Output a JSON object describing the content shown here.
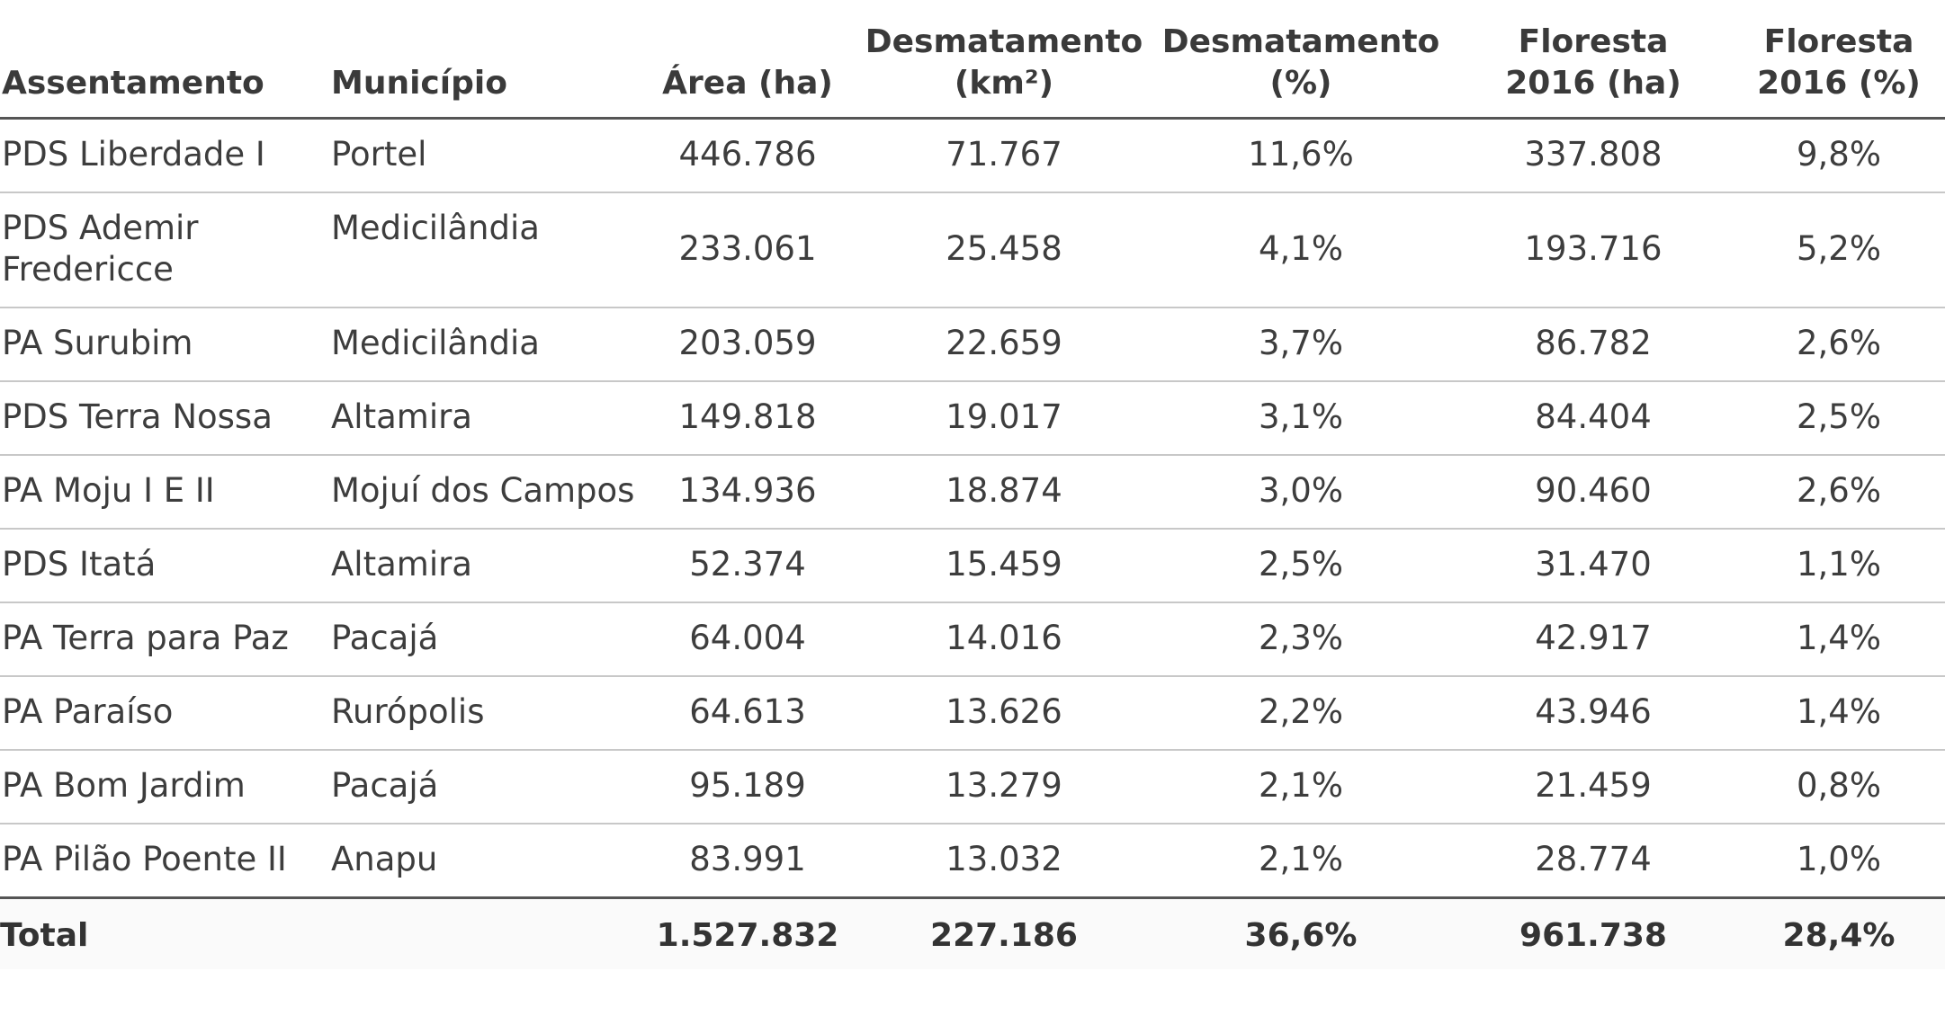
{
  "table": {
    "headers": [
      {
        "line1": "Assentamento",
        "line2": ""
      },
      {
        "line1": "Município",
        "line2": ""
      },
      {
        "line1": "Área (ha)",
        "line2": ""
      },
      {
        "line1": "Desmatamento",
        "line2": "(km²)"
      },
      {
        "line1": "Desmatamento",
        "line2": "(%)"
      },
      {
        "line1": "Floresta",
        "line2": "2016 (ha)"
      },
      {
        "line1": "Floresta",
        "line2": "2016 (%)"
      }
    ],
    "rows": [
      [
        "PDS Liberdade I",
        "Portel",
        "446.786",
        "71.767",
        "11,6%",
        "337.808",
        "9,8%"
      ],
      [
        "PDS Ademir Fredericce",
        "Medicilândia",
        "233.061",
        "25.458",
        "4,1%",
        "193.716",
        "5,2%"
      ],
      [
        "PA Surubim",
        "Medicilândia",
        "203.059",
        "22.659",
        "3,7%",
        "86.782",
        "2,6%"
      ],
      [
        "PDS Terra Nossa",
        "Altamira",
        "149.818",
        "19.017",
        "3,1%",
        "84.404",
        "2,5%"
      ],
      [
        "PA Moju I E II",
        "Mojuí dos Campos",
        "134.936",
        "18.874",
        "3,0%",
        "90.460",
        "2,6%"
      ],
      [
        "PDS Itatá",
        "Altamira",
        "52.374",
        "15.459",
        "2,5%",
        "31.470",
        "1,1%"
      ],
      [
        "PA Terra para Paz",
        "Pacajá",
        "64.004",
        "14.016",
        "2,3%",
        "42.917",
        "1,4%"
      ],
      [
        "PA Paraíso",
        "Rurópolis",
        "64.613",
        "13.626",
        "2,2%",
        "43.946",
        "1,4%"
      ],
      [
        "PA Bom Jardim",
        "Pacajá",
        "95.189",
        "13.279",
        "2,1%",
        "21.459",
        "0,8%"
      ],
      [
        "PA Pilão Poente II",
        "Anapu",
        "83.991",
        "13.032",
        "2,1%",
        "28.774",
        "1,0%"
      ]
    ],
    "total": [
      "Total",
      "",
      "1.527.832",
      "227.186",
      "36,6%",
      "961.738",
      "28,4%"
    ]
  }
}
